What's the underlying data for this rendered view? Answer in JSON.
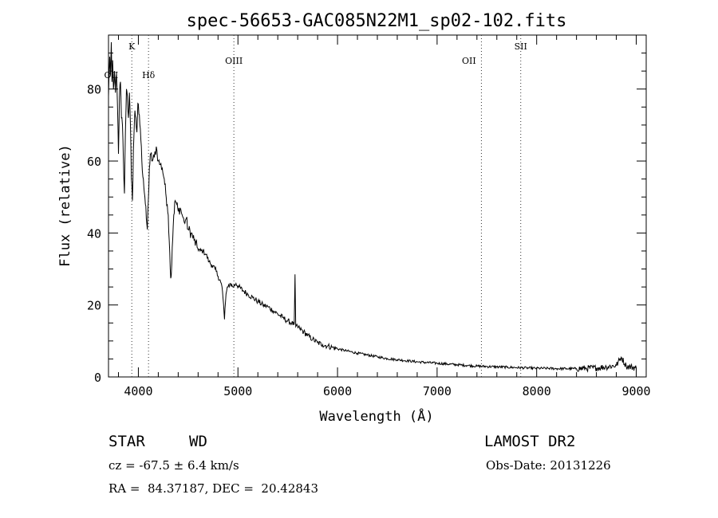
{
  "chart_data": {
    "type": "line",
    "title": "spec-56653-GAC085N22M1_sp02-102.fits",
    "xlabel": "Wavelength (Å)",
    "ylabel": "Flux (relative)",
    "xlim": [
      3700,
      9100
    ],
    "ylim": [
      0,
      95
    ],
    "x_ticks": [
      4000,
      5000,
      6000,
      7000,
      8000,
      9000
    ],
    "y_ticks": [
      0,
      20,
      40,
      60,
      80
    ],
    "grid": false,
    "line_color": "#000000",
    "series": [
      {
        "values_xy": [
          [
            3700,
            78
          ],
          [
            3712,
            89
          ],
          [
            3720,
            84
          ],
          [
            3728,
            93
          ],
          [
            3735,
            82
          ],
          [
            3742,
            88
          ],
          [
            3750,
            80
          ],
          [
            3760,
            85
          ],
          [
            3770,
            79
          ],
          [
            3780,
            84
          ],
          [
            3790,
            76
          ],
          [
            3800,
            62
          ],
          [
            3810,
            78
          ],
          [
            3820,
            82
          ],
          [
            3830,
            72
          ],
          [
            3840,
            70
          ],
          [
            3850,
            60
          ],
          [
            3860,
            51
          ],
          [
            3870,
            68
          ],
          [
            3880,
            80
          ],
          [
            3890,
            78
          ],
          [
            3900,
            72
          ],
          [
            3910,
            79
          ],
          [
            3920,
            70
          ],
          [
            3930,
            55
          ],
          [
            3940,
            49
          ],
          [
            3950,
            63
          ],
          [
            3965,
            74
          ],
          [
            3975,
            72
          ],
          [
            3985,
            68
          ],
          [
            3995,
            76
          ],
          [
            4005,
            73
          ],
          [
            4020,
            69
          ],
          [
            4035,
            60
          ],
          [
            4050,
            55
          ],
          [
            4065,
            50
          ],
          [
            4080,
            44
          ],
          [
            4090,
            41
          ],
          [
            4100,
            49
          ],
          [
            4110,
            58
          ],
          [
            4125,
            62
          ],
          [
            4140,
            60
          ],
          [
            4160,
            61
          ],
          [
            4180,
            64
          ],
          [
            4200,
            60
          ],
          [
            4220,
            59
          ],
          [
            4240,
            58
          ],
          [
            4260,
            55
          ],
          [
            4275,
            51
          ],
          [
            4290,
            48
          ],
          [
            4300,
            45
          ],
          [
            4310,
            38
          ],
          [
            4320,
            30
          ],
          [
            4330,
            28
          ],
          [
            4340,
            36
          ],
          [
            4355,
            45
          ],
          [
            4370,
            49
          ],
          [
            4385,
            48
          ],
          [
            4400,
            46
          ],
          [
            4420,
            47
          ],
          [
            4440,
            45
          ],
          [
            4460,
            43
          ],
          [
            4480,
            44
          ],
          [
            4500,
            41
          ],
          [
            4530,
            40
          ],
          [
            4560,
            38
          ],
          [
            4590,
            36
          ],
          [
            4620,
            35
          ],
          [
            4650,
            35
          ],
          [
            4680,
            34
          ],
          [
            4710,
            32
          ],
          [
            4740,
            31
          ],
          [
            4770,
            30
          ],
          [
            4800,
            28
          ],
          [
            4820,
            27
          ],
          [
            4840,
            25
          ],
          [
            4850,
            22
          ],
          [
            4860,
            18
          ],
          [
            4865,
            16
          ],
          [
            4870,
            19
          ],
          [
            4880,
            23
          ],
          [
            4900,
            25
          ],
          [
            4920,
            26
          ],
          [
            4950,
            25
          ],
          [
            4980,
            26
          ],
          [
            5010,
            25
          ],
          [
            5050,
            24
          ],
          [
            5100,
            23
          ],
          [
            5150,
            22
          ],
          [
            5200,
            21
          ],
          [
            5250,
            20
          ],
          [
            5300,
            19.5
          ],
          [
            5350,
            18.5
          ],
          [
            5400,
            17.5
          ],
          [
            5450,
            16.5
          ],
          [
            5500,
            15.5
          ],
          [
            5540,
            15
          ],
          [
            5565,
            14.5
          ],
          [
            5573,
            28.5
          ],
          [
            5580,
            14
          ],
          [
            5620,
            13.5
          ],
          [
            5660,
            12.5
          ],
          [
            5700,
            11.5
          ],
          [
            5750,
            10.5
          ],
          [
            5800,
            9.5
          ],
          [
            5850,
            9
          ],
          [
            5900,
            8.6
          ],
          [
            5950,
            8.2
          ],
          [
            6000,
            7.8
          ],
          [
            6100,
            7.2
          ],
          [
            6200,
            6.6
          ],
          [
            6300,
            6.1
          ],
          [
            6400,
            5.6
          ],
          [
            6500,
            5.1
          ],
          [
            6600,
            4.8
          ],
          [
            6700,
            4.5
          ],
          [
            6800,
            4.2
          ],
          [
            6900,
            4
          ],
          [
            7000,
            3.8
          ],
          [
            7100,
            3.6
          ],
          [
            7200,
            3.4
          ],
          [
            7300,
            3.2
          ],
          [
            7400,
            3
          ],
          [
            7500,
            2.9
          ],
          [
            7600,
            2.8
          ],
          [
            7700,
            2.7
          ],
          [
            7800,
            2.6
          ],
          [
            7900,
            2.5
          ],
          [
            8000,
            2.4
          ],
          [
            8100,
            2.4
          ],
          [
            8200,
            2.3
          ],
          [
            8300,
            2.3
          ],
          [
            8400,
            2.3
          ],
          [
            8500,
            2.4
          ],
          [
            8600,
            2.5
          ],
          [
            8700,
            2.8
          ],
          [
            8800,
            3.2
          ],
          [
            8850,
            5.5
          ],
          [
            8900,
            3
          ],
          [
            9000,
            2.5
          ]
        ]
      }
    ],
    "annotations": [
      {
        "label": "OII",
        "x": 3727,
        "y": 83
      },
      {
        "label": "K",
        "x": 3934,
        "y": 91
      },
      {
        "label": "Hδ",
        "x": 4102,
        "y": 83
      },
      {
        "label": "OIII",
        "x": 4959,
        "y": 87
      },
      {
        "label": "OII",
        "x": 7320,
        "y": 87
      },
      {
        "label": "SII",
        "x": 7840,
        "y": 91
      }
    ],
    "vlines": [
      3934,
      4102,
      4959,
      7445,
      7840
    ]
  },
  "info": {
    "class_label": "STAR",
    "subclass": "WD",
    "survey": "LAMOST DR2",
    "cz": "cz = -67.5 ± 6.4 km/s",
    "obs_date": "Obs-Date: 20131226",
    "coords": "RA =  84.37187, DEC =  20.42843"
  }
}
